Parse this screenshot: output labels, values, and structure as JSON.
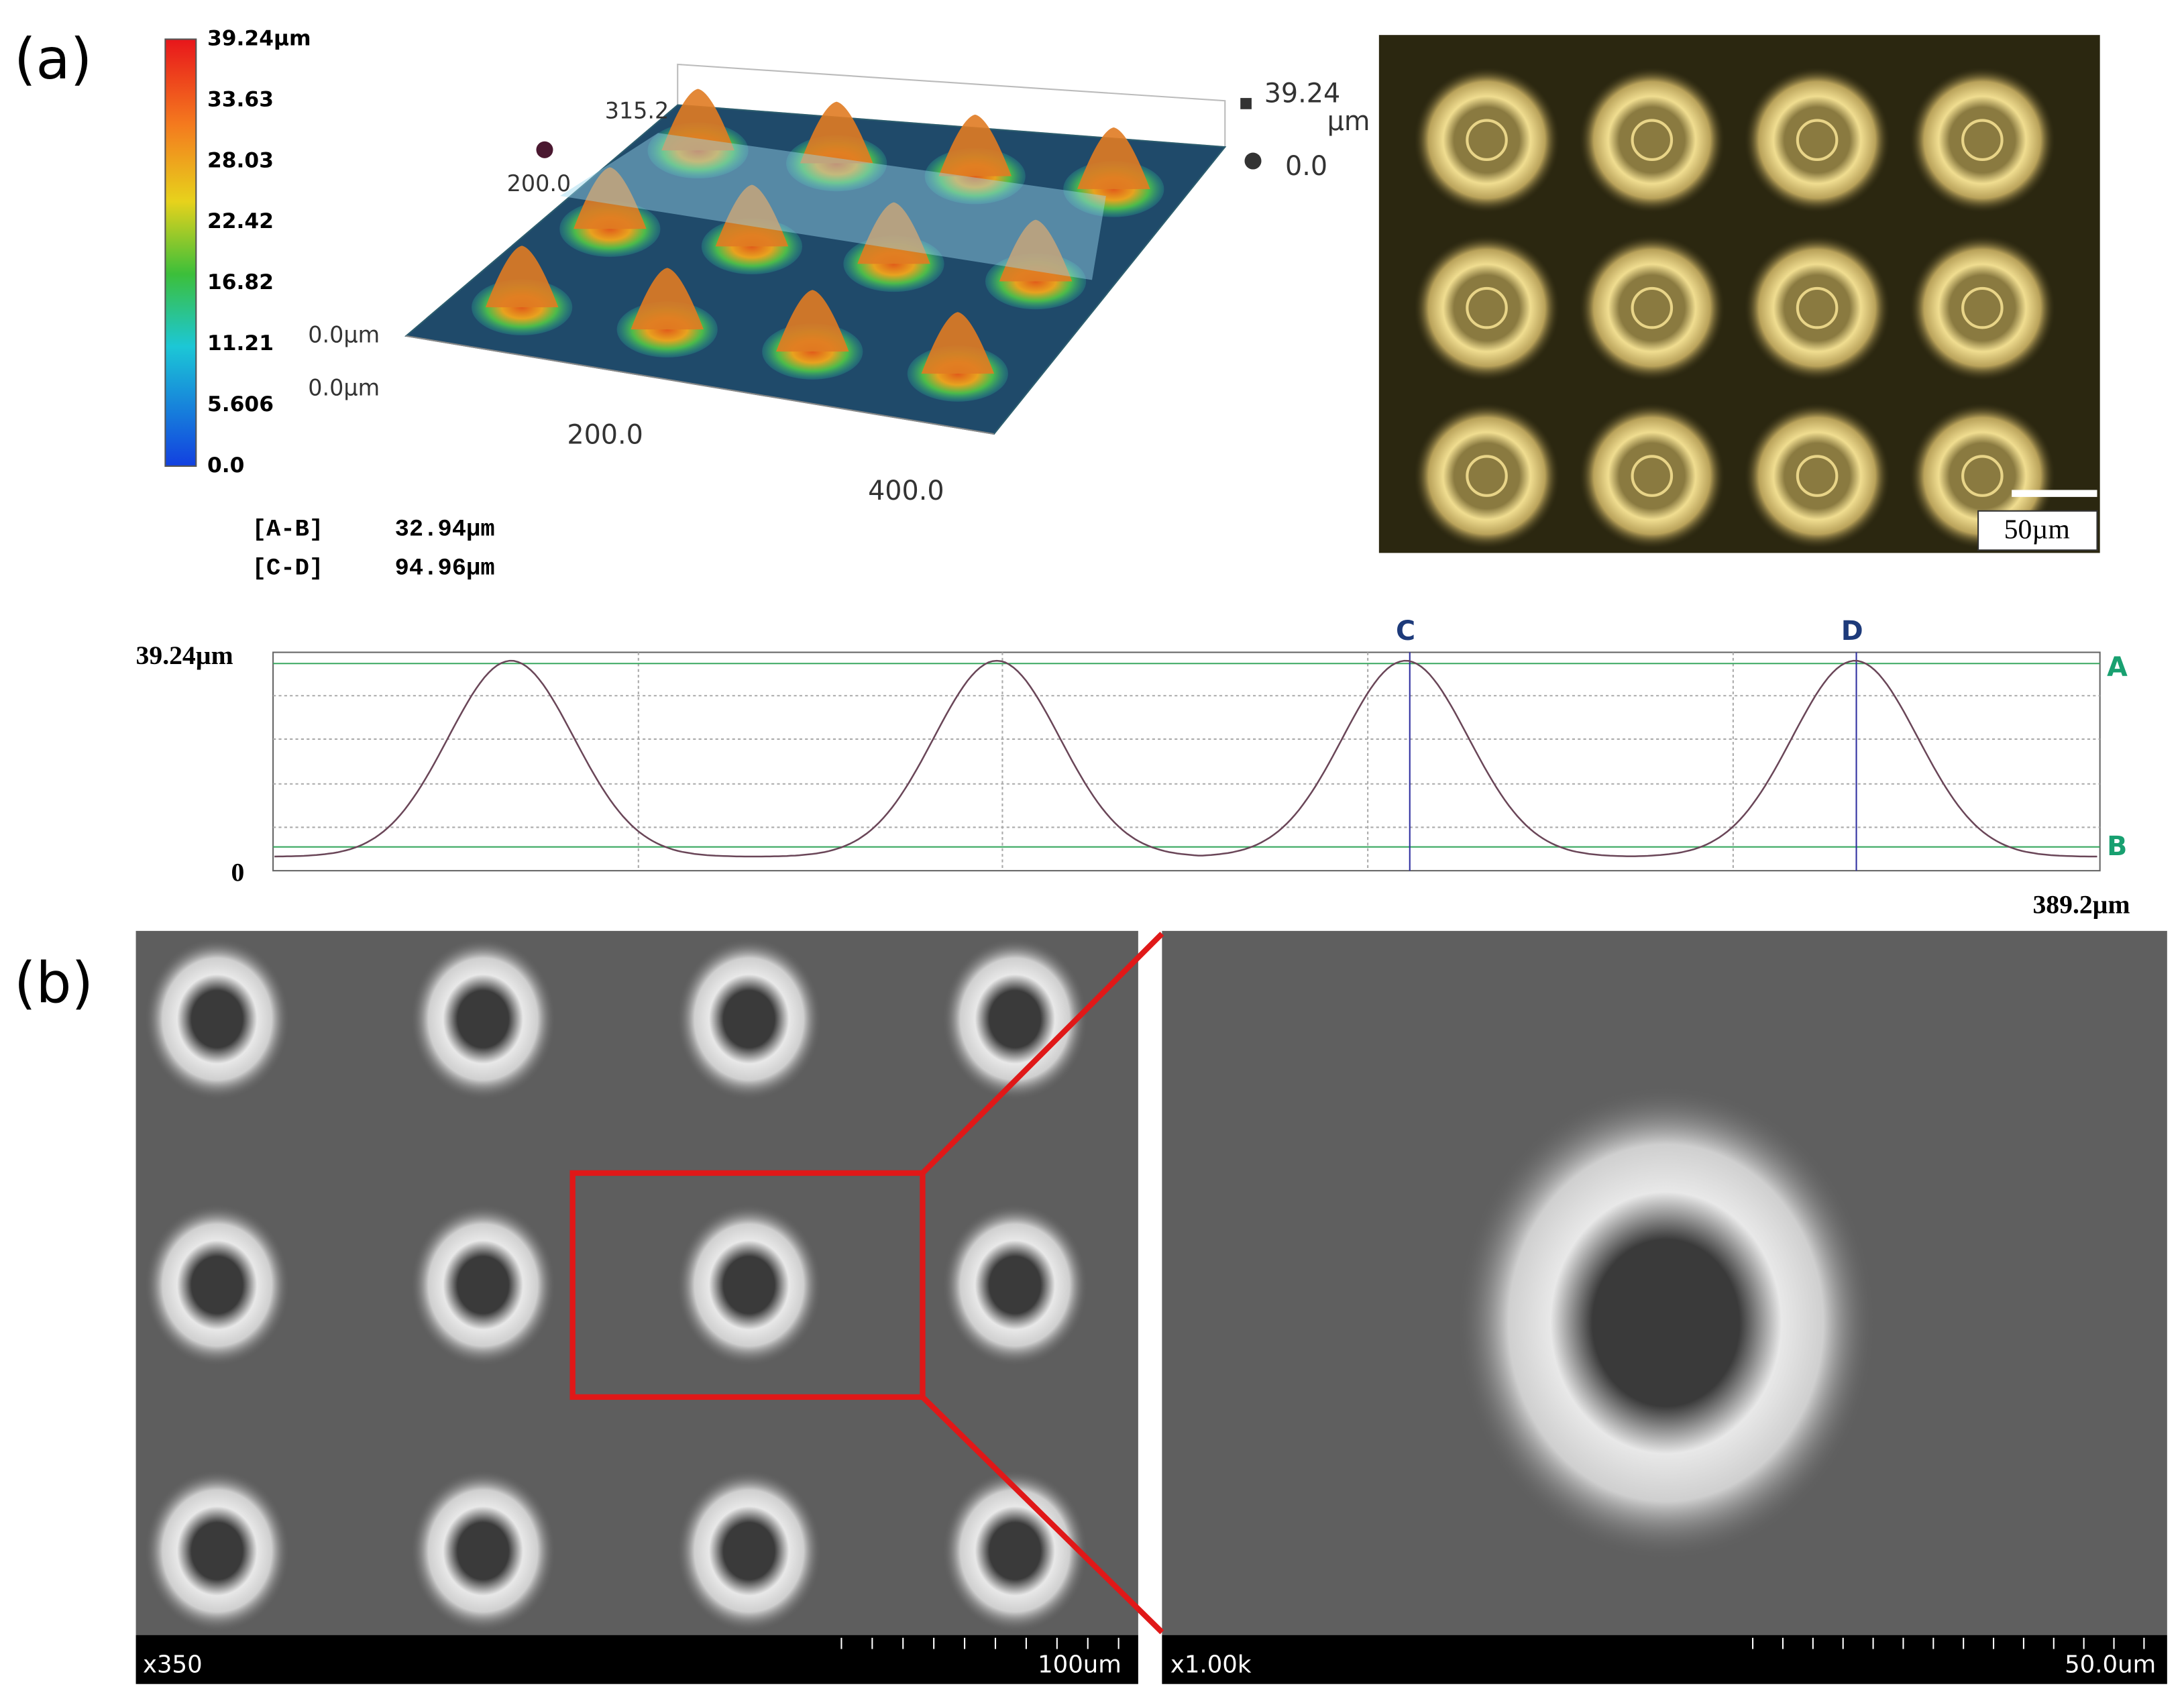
{
  "panel_a": {
    "label": "(a)",
    "colorbar": {
      "labels": [
        "39.24µm",
        "33.63",
        "28.03",
        "22.42",
        "16.82",
        "11.21",
        "5.606",
        "0.0"
      ]
    },
    "surface_3d": {
      "labels": [
        "315.2",
        "200.0",
        "0.0µm",
        "0.0µm",
        "200.0",
        "400.0",
        "39.24",
        "µm",
        "0.0"
      ]
    },
    "measurements": [
      {
        "name": "[A-B]",
        "value": "32.94µm"
      },
      {
        "name": "[C-D]",
        "value": "94.96µm"
      }
    ],
    "optical_image": {
      "scale_bar": "50µm"
    },
    "profile": {
      "y_top": "39.24µm",
      "y_bottom": "0",
      "x_end": "389.2µm",
      "markers": [
        "A",
        "B",
        "C",
        "D"
      ]
    }
  },
  "panel_b": {
    "label": "(b)",
    "sem_left": {
      "magnification": "x350",
      "scale": "100um"
    },
    "sem_right": {
      "magnification": "x1.00k",
      "scale": "50.0um"
    }
  }
}
